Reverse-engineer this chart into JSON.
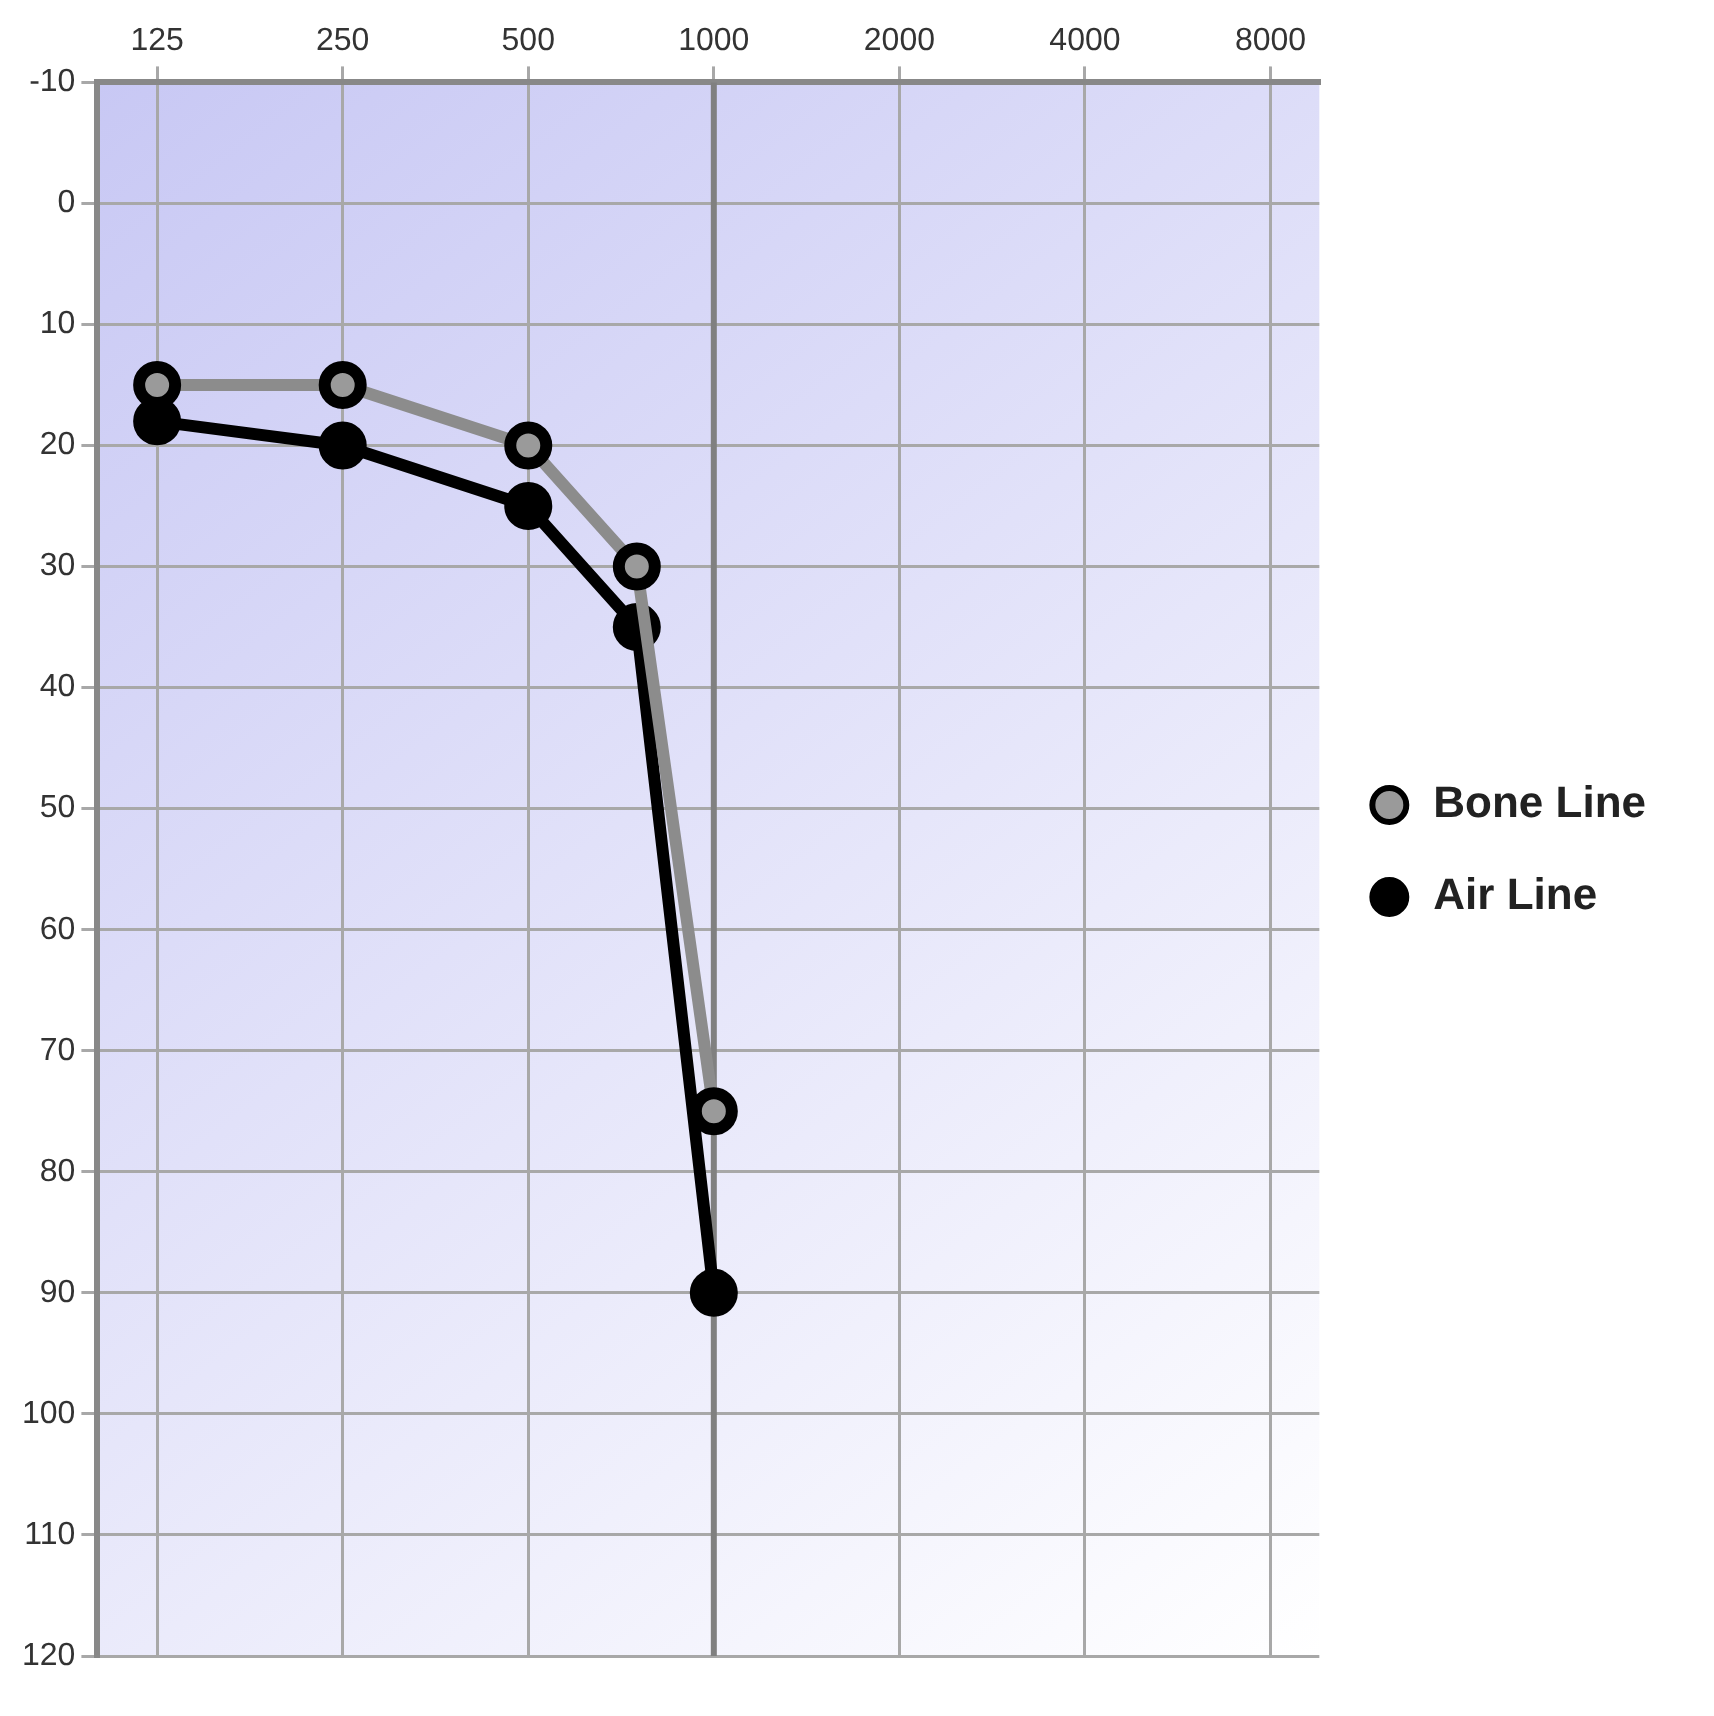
{
  "chart_data": {
    "type": "line",
    "x": [
      125,
      250,
      500,
      750,
      1000
    ],
    "series": [
      {
        "name": "Bone Line",
        "color": "#8c8c8c",
        "values": [
          15,
          15,
          20,
          30,
          75
        ]
      },
      {
        "name": "Air Line",
        "color": "#000000",
        "values": [
          18,
          20,
          25,
          35,
          90
        ]
      }
    ],
    "log": "x",
    "xlim": [
      100,
      9600
    ],
    "xticks": [
      125,
      250,
      500,
      1000,
      2000,
      4000,
      8000
    ],
    "ylim": [
      120,
      -10
    ],
    "yticks": [
      -10,
      0,
      10,
      20,
      30,
      40,
      50,
      60,
      70,
      80,
      90,
      100,
      110,
      120
    ],
    "ref_lines": [
      {
        "axis": "x",
        "value": 1000,
        "color": "#808080"
      }
    ],
    "grid": true,
    "legend": "right",
    "marker": "circle",
    "line_style": "solid"
  }
}
